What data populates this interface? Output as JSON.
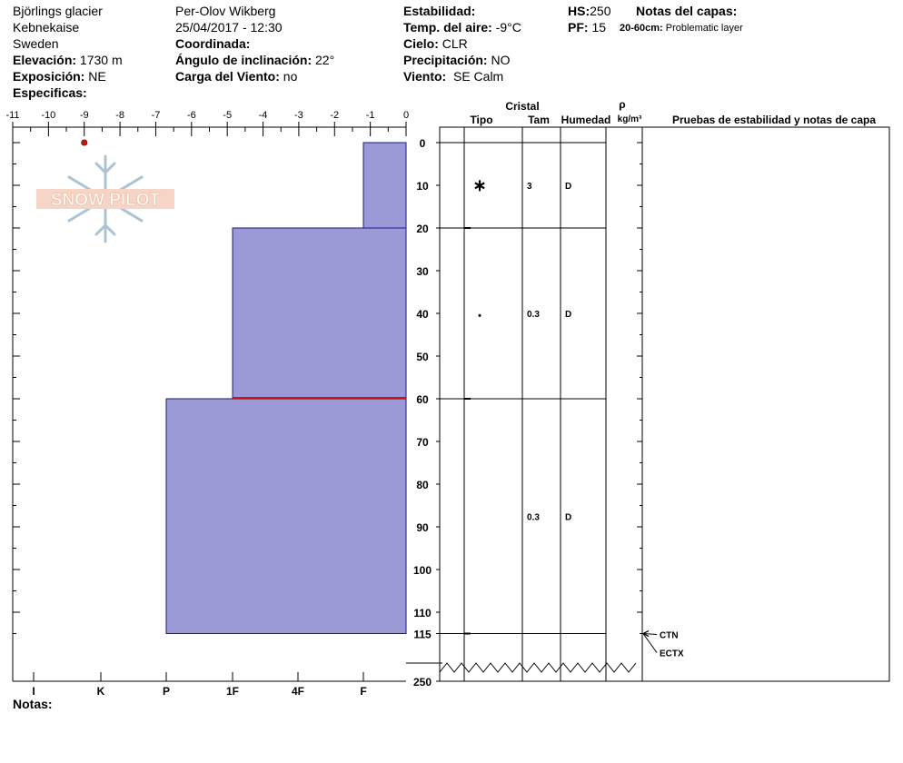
{
  "header": {
    "site": "Björlings glacier",
    "area": "Kebnekaise",
    "country": "Sweden",
    "elevation_label": "Elevación:",
    "elevation_value": "1730 m",
    "aspect_label": "Exposición:",
    "aspect_value": "NE",
    "specifics_label": "Especificas:",
    "observer": "Per-Olov Wikberg",
    "datetime": "25/04/2017 - 12:30",
    "coord_label": "Coordinada:",
    "slope_label": "Ángulo de inclinación:",
    "slope_value": "22°",
    "wind_load_label": "Carga del Viento:",
    "wind_load_value": "no",
    "stability_label": "Estabilidad:",
    "air_temp_label": "Temp. del aire:",
    "air_temp_value": "-9°C",
    "sky_label": "Cielo:",
    "sky_value": "CLR",
    "precip_label": "Precipitación:",
    "precip_value": "NO",
    "wind_label": "Viento:",
    "wind_value": "SE Calm",
    "hs_label": "HS:",
    "hs_value": "250",
    "pf_label": "PF:",
    "pf_value": "15",
    "layer_notes_label": "Notas del capas:",
    "layer_note_range": "20-60cm:",
    "layer_note_text": "Problematic layer"
  },
  "logo_text": "SNOW PILOT",
  "notes_label": "Notas:",
  "colors": {
    "layer_fill": "#9b9ad6",
    "layer_stroke": "#1a1a8a",
    "problem_line": "#cc1111",
    "temp_point": "#cc1111"
  },
  "table": {
    "crystal_header": "Cristal",
    "type_header": "Tipo",
    "size_header": "Tam",
    "moisture_header": "Humedad",
    "density_symbol": "ρ",
    "density_unit": "kg/m³",
    "tests_header": "Pruebas de estabilidad y notas de capa",
    "rows": [
      {
        "top": 0,
        "bottom": 20,
        "type": "∗",
        "size": "3",
        "moisture": "D"
      },
      {
        "top": 20,
        "bottom": 60,
        "type": "•",
        "size": "0.3",
        "moisture": "D"
      },
      {
        "top": 60,
        "bottom": 115,
        "type": "",
        "size": "0.3",
        "moisture": "D"
      }
    ],
    "tests": [
      {
        "label": "CTN",
        "depth": 115
      },
      {
        "label": "ECTX",
        "depth": 115
      }
    ]
  },
  "chart_data": {
    "type": "bar",
    "temperature_axis": {
      "range": [
        -11,
        0
      ],
      "ticks": [
        "-11",
        "-10",
        "-9",
        "-8",
        "-7",
        "-6",
        "-5",
        "-4",
        "-3",
        "-2",
        "-1",
        "0"
      ]
    },
    "hardness_axis": {
      "ticks": [
        "I",
        "K",
        "P",
        "1F",
        "4F",
        "F"
      ]
    },
    "depth_axis": {
      "unit": "cm",
      "ticks": [
        "0",
        "10",
        "20",
        "30",
        "40",
        "50",
        "60",
        "70",
        "80",
        "90",
        "100",
        "110",
        "115",
        "250"
      ],
      "total": 250
    },
    "layers": [
      {
        "top": 0,
        "bottom": 20,
        "hardness": "F"
      },
      {
        "top": 20,
        "bottom": 60,
        "hardness": "1F"
      },
      {
        "top": 60,
        "bottom": 115,
        "hardness": "P"
      }
    ],
    "problem_layer_depth": 60,
    "temperature_profile": [
      {
        "depth": 0,
        "temp": -9
      }
    ]
  }
}
